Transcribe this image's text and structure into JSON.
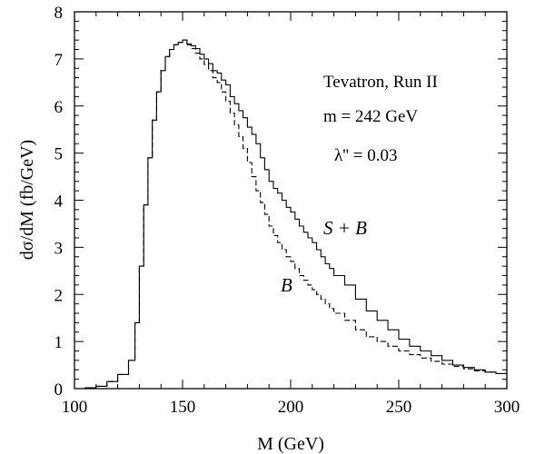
{
  "chart_data": {
    "type": "line",
    "xlabel": "M (GeV)",
    "ylabel": "dσ/dM (fb/GeV)",
    "xlim": [
      100,
      300
    ],
    "ylim": [
      0,
      8
    ],
    "xticks": [
      100,
      150,
      200,
      250,
      300
    ],
    "yticks": [
      0,
      1,
      2,
      3,
      4,
      5,
      6,
      7,
      8
    ],
    "grid": false,
    "annotations": {
      "collider": "Tevatron, Run II",
      "mass": "m = 242 GeV",
      "coupling": "λ'' = 0.03",
      "label_sb": "S + B",
      "label_b": "B"
    },
    "series": [
      {
        "name": "S + B",
        "style": "solid",
        "x": [
          100,
          105,
          110,
          115,
          120,
          125,
          128,
          130,
          132,
          134,
          136,
          138,
          140,
          142,
          144,
          146,
          148,
          150,
          152,
          154,
          156,
          158,
          160,
          162,
          164,
          166,
          168,
          170,
          172,
          174,
          176,
          178,
          180,
          182,
          184,
          186,
          188,
          190,
          192,
          194,
          196,
          198,
          200,
          202,
          204,
          206,
          208,
          210,
          212,
          214,
          216,
          218,
          220,
          225,
          230,
          235,
          240,
          245,
          250,
          255,
          260,
          265,
          270,
          275,
          280,
          285,
          290,
          295,
          300
        ],
        "values": [
          0.0,
          0.02,
          0.05,
          0.15,
          0.3,
          0.6,
          1.4,
          2.6,
          3.9,
          4.9,
          5.7,
          6.3,
          6.75,
          7.05,
          7.2,
          7.3,
          7.35,
          7.4,
          7.32,
          7.28,
          7.22,
          7.1,
          7.0,
          6.9,
          6.75,
          6.7,
          6.55,
          6.45,
          6.2,
          6.05,
          5.9,
          5.75,
          5.55,
          5.4,
          5.2,
          4.9,
          4.65,
          4.4,
          4.25,
          4.15,
          4.0,
          3.85,
          3.75,
          3.6,
          3.45,
          3.32,
          3.2,
          3.1,
          2.95,
          2.8,
          2.65,
          2.55,
          2.4,
          2.2,
          1.9,
          1.65,
          1.45,
          1.25,
          1.05,
          0.9,
          0.8,
          0.7,
          0.6,
          0.5,
          0.45,
          0.4,
          0.35,
          0.32,
          0.3
        ]
      },
      {
        "name": "B",
        "style": "dashed",
        "x": [
          100,
          105,
          110,
          115,
          120,
          125,
          128,
          130,
          132,
          134,
          136,
          138,
          140,
          142,
          144,
          146,
          148,
          150,
          152,
          154,
          156,
          158,
          160,
          162,
          164,
          166,
          168,
          170,
          172,
          174,
          176,
          178,
          180,
          182,
          184,
          186,
          188,
          190,
          192,
          194,
          196,
          198,
          200,
          202,
          204,
          206,
          208,
          210,
          212,
          214,
          216,
          218,
          220,
          225,
          230,
          235,
          240,
          245,
          250,
          255,
          260,
          265,
          270,
          275,
          280,
          285,
          290,
          295,
          300
        ],
        "values": [
          0.0,
          0.02,
          0.05,
          0.15,
          0.3,
          0.6,
          1.4,
          2.6,
          3.9,
          4.9,
          5.7,
          6.3,
          6.75,
          7.05,
          7.2,
          7.3,
          7.35,
          7.4,
          7.3,
          7.22,
          7.12,
          7.0,
          6.88,
          6.75,
          6.6,
          6.5,
          6.3,
          6.1,
          5.85,
          5.6,
          5.35,
          5.1,
          4.8,
          4.5,
          4.2,
          3.95,
          3.7,
          3.45,
          3.25,
          3.1,
          2.95,
          2.8,
          2.7,
          2.55,
          2.4,
          2.3,
          2.2,
          2.1,
          2.0,
          1.9,
          1.8,
          1.7,
          1.6,
          1.45,
          1.25,
          1.1,
          1.0,
          0.9,
          0.8,
          0.72,
          0.65,
          0.58,
          0.52,
          0.47,
          0.42,
          0.38,
          0.35,
          0.32,
          0.3
        ]
      }
    ]
  }
}
